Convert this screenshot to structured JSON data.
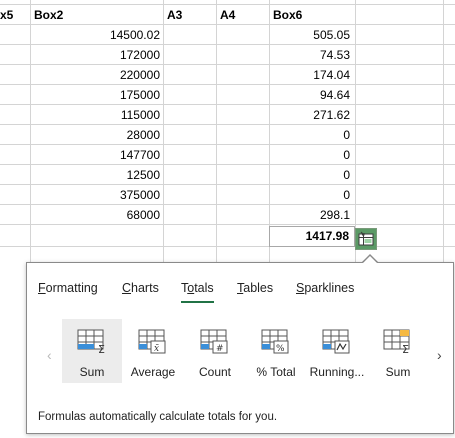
{
  "columns": {
    "col_a": "x5",
    "col_b": "Box2",
    "col_c": "A3",
    "col_d": "A4",
    "col_e": "Box6"
  },
  "box2_values": [
    "14500.02",
    "172000",
    "220000",
    "175000",
    "115000",
    "28000",
    "147700",
    "12500",
    "375000",
    "68000"
  ],
  "box6_values": [
    "505.05",
    "74.53",
    "174.04",
    "94.64",
    "271.62",
    "0",
    "0",
    "0",
    "0",
    "298.1"
  ],
  "box6_total": "1417.98",
  "quick_analysis": {
    "tabs": [
      {
        "key": "F",
        "rest": "ormatting"
      },
      {
        "key": "C",
        "rest": "harts"
      },
      {
        "key": "T",
        "rest": "otals",
        "pre": "",
        "mid": "o",
        "post": "tals"
      },
      {
        "key": "T",
        "rest": "ables"
      },
      {
        "key": "S",
        "rest": "parklines"
      }
    ],
    "tab_labels": [
      "Formatting",
      "Charts",
      "Totals",
      "Tables",
      "Sparklines"
    ],
    "active_tab": "Totals",
    "options": [
      "Sum",
      "Average",
      "Count",
      "% Total",
      "Running...",
      "Sum"
    ],
    "selected_option": "Sum",
    "description": "Formulas automatically calculate totals for you.",
    "accent_color": "#217346"
  }
}
